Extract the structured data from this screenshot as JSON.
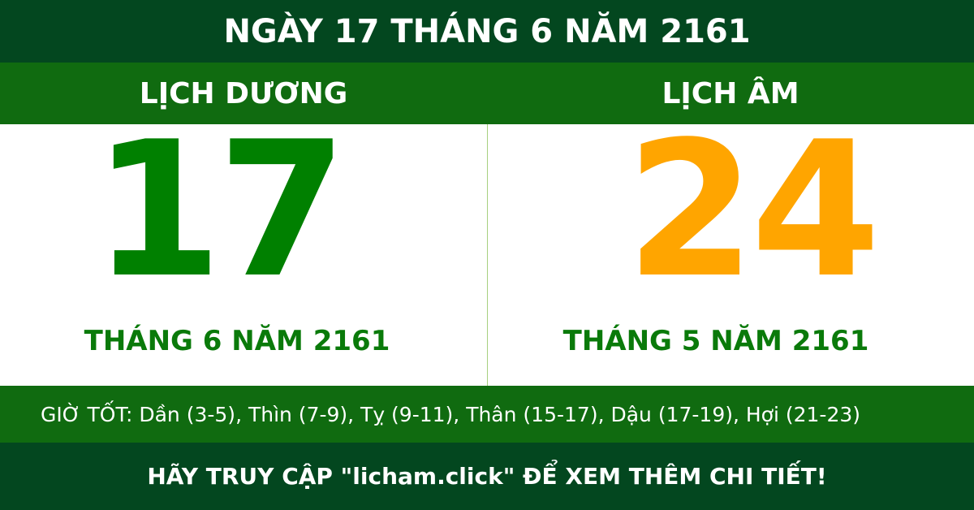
{
  "title": "NGÀY 17 THÁNG 6 NĂM 2161",
  "solar": {
    "label": "LỊCH DƯƠNG",
    "day": "17",
    "month_year": "THÁNG 6 NĂM 2161",
    "color": "#008000"
  },
  "lunar": {
    "label": "LỊCH ÂM",
    "day": "24",
    "month_year": "THÁNG 5 NĂM 2161",
    "color": "#ffa500"
  },
  "good_hours": "GIỜ TỐT: Dần (3-5), Thìn (7-9), Tỵ (9-11), Thân (15-17), Dậu (17-19), Hợi (21-23)",
  "footer": "HÃY TRUY CẬP \"licham.click\" ĐỂ XEM THÊM CHI TIẾT!",
  "colors": {
    "dark_green": "#03471f",
    "green": "#106b10"
  }
}
